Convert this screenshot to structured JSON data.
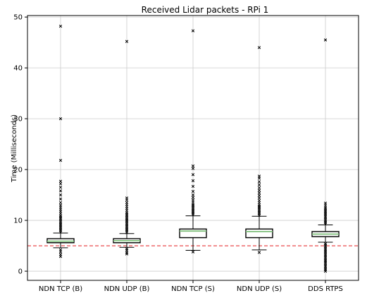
{
  "chart_data": {
    "type": "box",
    "title": "Received Lidar packets - RPi 1",
    "xlabel": "",
    "ylabel": "Time (Milliseconds)",
    "ylim": [
      -1.8,
      50.3
    ],
    "yticks": [
      0,
      10,
      20,
      30,
      40,
      50
    ],
    "grid": true,
    "reference_line": {
      "y": 5.0,
      "color": "#e8383b",
      "style": "dashed"
    },
    "box_color": "#000000",
    "median_color": "#7fbf7b",
    "categories": [
      "NDN TCP (B)",
      "NDN UDP (B)",
      "NDN TCP (S)",
      "NDN UDP (S)",
      "DDS RTPS"
    ],
    "boxes": [
      {
        "label": "NDN TCP (B)",
        "whisker_low": 4.6,
        "q1": 5.6,
        "median": 5.9,
        "q3": 6.4,
        "whisker_high": 7.5,
        "outliers": [
          2.9,
          3.3,
          3.8,
          4.2,
          7.7,
          8.0,
          8.3,
          8.6,
          8.9,
          9.2,
          9.5,
          9.8,
          10.1,
          10.4,
          10.7,
          11.0,
          11.4,
          11.8,
          12.2,
          12.6,
          13.0,
          13.5,
          14.2,
          15.0,
          15.8,
          16.5,
          17.2,
          17.7,
          21.8,
          30.0,
          48.2
        ]
      },
      {
        "label": "NDN UDP (B)",
        "whisker_low": 4.7,
        "q1": 5.6,
        "median": 6.0,
        "q3": 6.4,
        "whisker_high": 7.4,
        "outliers": [
          3.4,
          3.7,
          4.1,
          4.4,
          7.6,
          7.9,
          8.2,
          8.5,
          8.8,
          9.1,
          9.4,
          9.7,
          10.0,
          10.3,
          10.6,
          10.9,
          11.2,
          11.5,
          11.9,
          12.3,
          12.7,
          13.1,
          13.5,
          14.0,
          14.4,
          45.2
        ]
      },
      {
        "label": "NDN TCP (S)",
        "whisker_low": 4.1,
        "q1": 6.6,
        "median": 7.9,
        "q3": 8.3,
        "whisker_high": 10.9,
        "outliers": [
          3.8,
          11.1,
          11.4,
          11.7,
          12.0,
          12.3,
          12.6,
          12.9,
          13.2,
          13.6,
          14.0,
          14.5,
          15.0,
          15.7,
          16.7,
          17.8,
          19.0,
          20.2,
          20.7,
          47.3
        ]
      },
      {
        "label": "NDN UDP (S)",
        "whisker_low": 4.2,
        "q1": 6.6,
        "median": 7.8,
        "q3": 8.3,
        "whisker_high": 10.8,
        "outliers": [
          3.7,
          11.0,
          11.3,
          11.6,
          11.9,
          12.2,
          12.5,
          12.8,
          13.1,
          13.5,
          13.9,
          14.4,
          14.9,
          15.4,
          15.9,
          16.4,
          17.0,
          17.6,
          18.3,
          18.7,
          44.0
        ]
      },
      {
        "label": "DDS RTPS",
        "whisker_low": 5.7,
        "q1": 6.8,
        "median": 7.3,
        "q3": 7.8,
        "whisker_high": 9.1,
        "outliers": [
          0.0,
          0.3,
          0.6,
          0.9,
          1.2,
          1.5,
          1.8,
          2.1,
          2.4,
          2.7,
          3.0,
          3.3,
          3.6,
          3.9,
          4.2,
          4.5,
          4.8,
          5.1,
          5.4,
          9.3,
          9.6,
          9.9,
          10.2,
          10.5,
          10.8,
          11.1,
          11.4,
          11.7,
          12.0,
          12.3,
          12.6,
          13.0,
          13.4,
          45.5
        ]
      }
    ]
  }
}
